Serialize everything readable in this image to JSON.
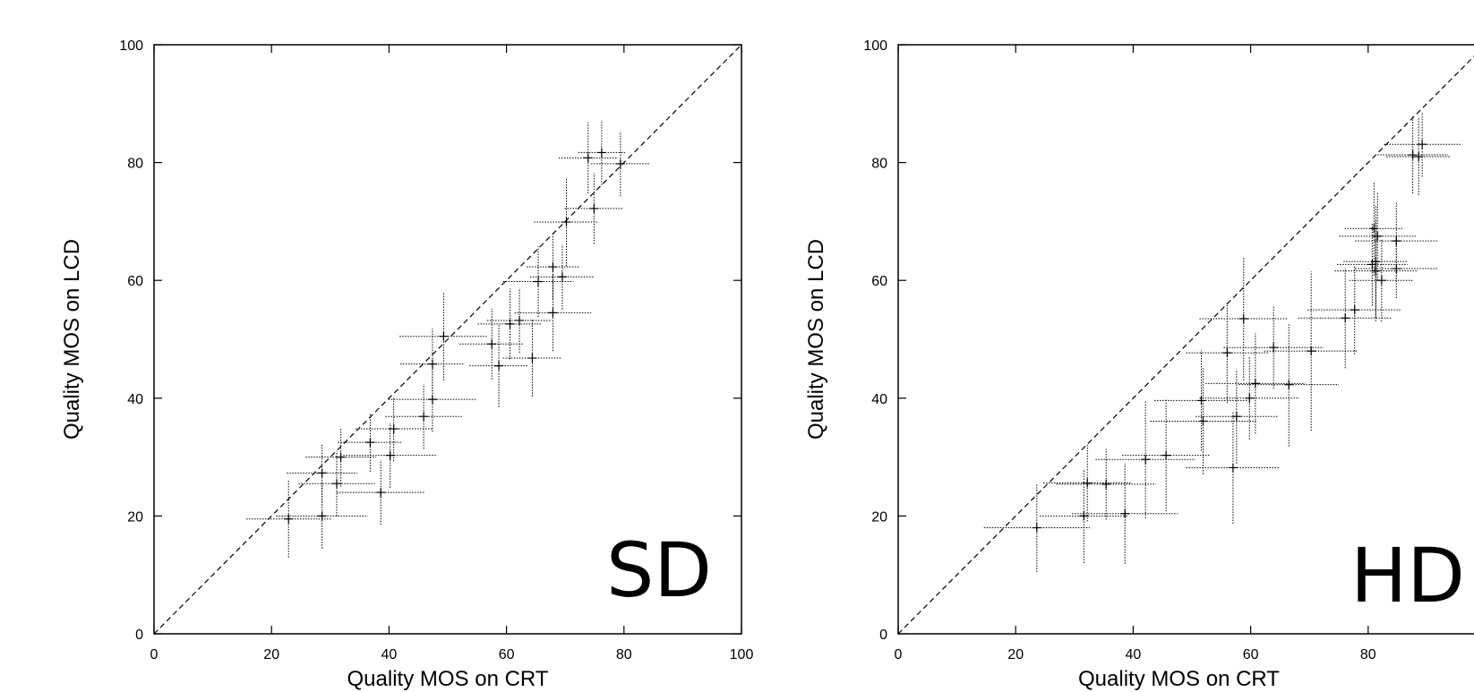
{
  "chart_data": [
    {
      "type": "scatter",
      "panel_label": "SD",
      "xlabel": "Quality MOS on CRT",
      "ylabel": "Quality MOS on LCD",
      "xlim": [
        0,
        100
      ],
      "ylim": [
        0,
        100
      ],
      "xticks": [
        "0",
        "20",
        "40",
        "60",
        "80",
        "100"
      ],
      "yticks": [
        "0",
        "20",
        "40",
        "60",
        "80",
        "100"
      ],
      "diagonal_reference": true,
      "grid": false,
      "points": [
        {
          "x": 22.9,
          "y": 19.5,
          "xerr": 7.2,
          "yerr": 6.5
        },
        {
          "x": 28.6,
          "y": 20.0,
          "xerr": 7.8,
          "yerr": 5.5
        },
        {
          "x": 28.6,
          "y": 27.3,
          "xerr": 6.0,
          "yerr": 5.0
        },
        {
          "x": 31.1,
          "y": 25.5,
          "xerr": 6.5,
          "yerr": 5.5
        },
        {
          "x": 31.8,
          "y": 30.0,
          "xerr": 6.0,
          "yerr": 5.0
        },
        {
          "x": 36.8,
          "y": 32.5,
          "xerr": 5.5,
          "yerr": 5.0
        },
        {
          "x": 38.6,
          "y": 24.0,
          "xerr": 7.5,
          "yerr": 5.5
        },
        {
          "x": 40.2,
          "y": 30.3,
          "xerr": 8.0,
          "yerr": 5.5
        },
        {
          "x": 40.8,
          "y": 34.8,
          "xerr": 6.5,
          "yerr": 5.5
        },
        {
          "x": 45.9,
          "y": 36.9,
          "xerr": 6.5,
          "yerr": 5.5
        },
        {
          "x": 47.4,
          "y": 39.8,
          "xerr": 7.5,
          "yerr": 5.5
        },
        {
          "x": 47.4,
          "y": 45.8,
          "xerr": 5.5,
          "yerr": 6.0
        },
        {
          "x": 49.3,
          "y": 50.5,
          "xerr": 7.5,
          "yerr": 7.5
        },
        {
          "x": 57.5,
          "y": 49.2,
          "xerr": 5.5,
          "yerr": 6.0
        },
        {
          "x": 58.7,
          "y": 45.5,
          "xerr": 5.0,
          "yerr": 7.0
        },
        {
          "x": 60.6,
          "y": 52.6,
          "xerr": 5.5,
          "yerr": 6.0
        },
        {
          "x": 62.2,
          "y": 53.2,
          "xerr": 5.5,
          "yerr": 5.5
        },
        {
          "x": 64.4,
          "y": 46.8,
          "xerr": 5.0,
          "yerr": 6.5
        },
        {
          "x": 65.4,
          "y": 59.8,
          "xerr": 6.0,
          "yerr": 6.0
        },
        {
          "x": 67.9,
          "y": 62.3,
          "xerr": 4.5,
          "yerr": 5.5
        },
        {
          "x": 67.9,
          "y": 54.5,
          "xerr": 6.5,
          "yerr": 6.5
        },
        {
          "x": 69.5,
          "y": 60.6,
          "xerr": 5.5,
          "yerr": 5.5
        },
        {
          "x": 70.2,
          "y": 69.9,
          "xerr": 5.5,
          "yerr": 7.5
        },
        {
          "x": 73.9,
          "y": 80.8,
          "xerr": 5.0,
          "yerr": 6.0
        },
        {
          "x": 74.9,
          "y": 72.2,
          "xerr": 5.0,
          "yerr": 6.0
        },
        {
          "x": 76.2,
          "y": 81.7,
          "xerr": 4.0,
          "yerr": 5.5
        },
        {
          "x": 79.4,
          "y": 79.8,
          "xerr": 5.0,
          "yerr": 5.5
        }
      ]
    },
    {
      "type": "scatter",
      "panel_label": "HD",
      "xlabel": "Quality MOS on CRT",
      "ylabel": "Quality MOS on LCD",
      "xlim": [
        0,
        100
      ],
      "ylim": [
        0,
        100
      ],
      "xticks": [
        "0",
        "20",
        "40",
        "60",
        "80"
      ],
      "yticks": [
        "0",
        "20",
        "40",
        "60",
        "80",
        "100"
      ],
      "diagonal_reference": true,
      "grid": false,
      "points": [
        {
          "x": 23.6,
          "y": 18.0,
          "xerr": 9.0,
          "yerr": 7.5
        },
        {
          "x": 31.6,
          "y": 20.0,
          "xerr": 7.5,
          "yerr": 8.0
        },
        {
          "x": 32.2,
          "y": 25.6,
          "xerr": 7.5,
          "yerr": 6.5
        },
        {
          "x": 35.4,
          "y": 25.4,
          "xerr": 8.5,
          "yerr": 6.0
        },
        {
          "x": 38.6,
          "y": 20.4,
          "xerr": 9.0,
          "yerr": 8.5
        },
        {
          "x": 42.1,
          "y": 29.6,
          "xerr": 8.5,
          "yerr": 10.0
        },
        {
          "x": 45.6,
          "y": 30.3,
          "xerr": 7.5,
          "yerr": 9.5
        },
        {
          "x": 51.6,
          "y": 39.6,
          "xerr": 8.0,
          "yerr": 8.5
        },
        {
          "x": 51.9,
          "y": 36.1,
          "xerr": 9.0,
          "yerr": 9.0
        },
        {
          "x": 56.0,
          "y": 47.7,
          "xerr": 7.0,
          "yerr": 8.5
        },
        {
          "x": 57.0,
          "y": 28.2,
          "xerr": 8.0,
          "yerr": 9.5
        },
        {
          "x": 57.6,
          "y": 36.9,
          "xerr": 7.0,
          "yerr": 8.0
        },
        {
          "x": 58.8,
          "y": 53.5,
          "xerr": 7.5,
          "yerr": 10.5
        },
        {
          "x": 59.8,
          "y": 40.0,
          "xerr": 8.5,
          "yerr": 7.0
        },
        {
          "x": 60.8,
          "y": 42.5,
          "xerr": 8.5,
          "yerr": 8.5
        },
        {
          "x": 63.9,
          "y": 48.6,
          "xerr": 8.5,
          "yerr": 7.0
        },
        {
          "x": 66.5,
          "y": 42.3,
          "xerr": 8.5,
          "yerr": 10.5
        },
        {
          "x": 70.3,
          "y": 48.0,
          "xerr": 8.0,
          "yerr": 13.5
        },
        {
          "x": 76.1,
          "y": 53.6,
          "xerr": 8.0,
          "yerr": 8.5
        },
        {
          "x": 77.7,
          "y": 55.0,
          "xerr": 8.0,
          "yerr": 7.5
        },
        {
          "x": 80.7,
          "y": 62.7,
          "xerr": 6.0,
          "yerr": 7.0
        },
        {
          "x": 81.0,
          "y": 68.8,
          "xerr": 5.0,
          "yerr": 8.0
        },
        {
          "x": 81.3,
          "y": 61.6,
          "xerr": 7.0,
          "yerr": 8.5
        },
        {
          "x": 81.3,
          "y": 63.2,
          "xerr": 5.5,
          "yerr": 9.5
        },
        {
          "x": 81.6,
          "y": 67.5,
          "xerr": 6.5,
          "yerr": 7.5
        },
        {
          "x": 82.3,
          "y": 60.0,
          "xerr": 5.5,
          "yerr": 7.0
        },
        {
          "x": 84.8,
          "y": 66.7,
          "xerr": 7.0,
          "yerr": 6.5
        },
        {
          "x": 84.8,
          "y": 62.0,
          "xerr": 7.0,
          "yerr": 5.0
        },
        {
          "x": 87.6,
          "y": 81.3,
          "xerr": 6.0,
          "yerr": 6.5
        },
        {
          "x": 88.6,
          "y": 81.0,
          "xerr": 5.5,
          "yerr": 6.5
        },
        {
          "x": 89.2,
          "y": 83.1,
          "xerr": 6.5,
          "yerr": 5.5
        }
      ]
    }
  ]
}
